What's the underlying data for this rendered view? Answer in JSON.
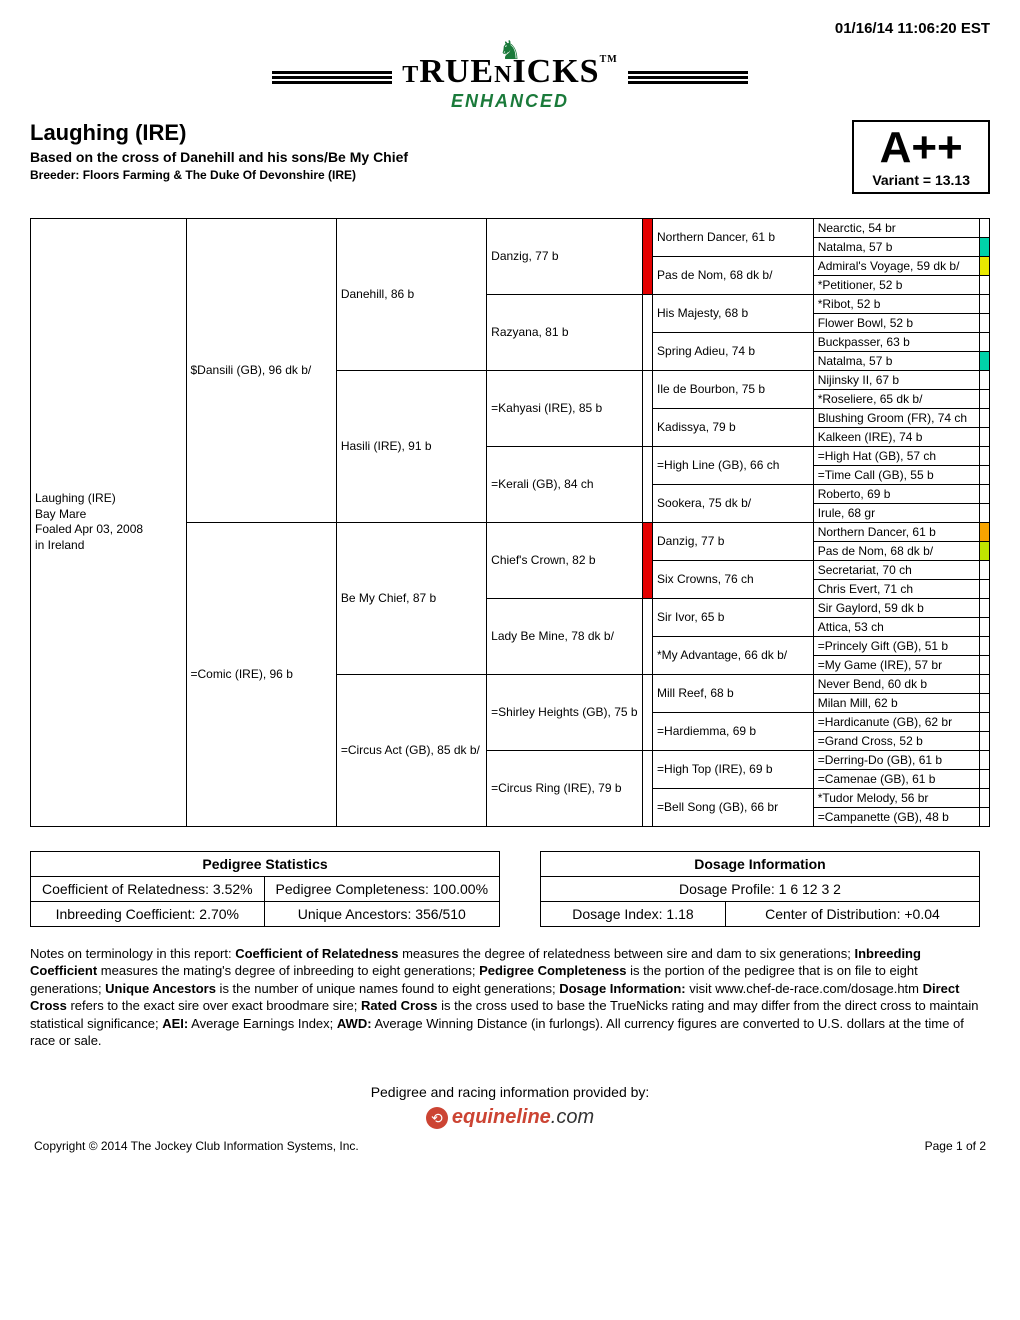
{
  "timestamp": "01/16/14 11:06:20 EST",
  "logo": {
    "main": "TRUENICKS",
    "tm": "TM",
    "sub": "ENHANCED"
  },
  "header": {
    "horse_name": "Laughing (IRE)",
    "cross_line": "Based on the cross of Danehill and his sons/Be My Chief",
    "breeder_line": "Breeder: Floors Farming & The Duke Of Devonshire (IRE)",
    "rating_grade": "A++",
    "rating_variant": "Variant = 13.13"
  },
  "subject": {
    "line1": "Laughing (IRE)",
    "line2": "Bay Mare",
    "line3": "Foaled Apr 03, 2008",
    "line4": "in Ireland"
  },
  "colors": {
    "red": "#e40000",
    "orange": "#f7a400",
    "teal": "#00d2a8",
    "yellow": "#e9e900",
    "lime": "#bfe400"
  },
  "ped": {
    "g1": [
      "$Dansili (GB), 96 dk b/",
      "=Comic (IRE), 96 b"
    ],
    "g2": [
      "Danehill, 86 b",
      "Hasili (IRE), 91 b",
      "Be My Chief, 87 b",
      "=Circus Act (GB), 85 dk b/"
    ],
    "g3": [
      "Danzig, 77 b",
      "Razyana, 81 b",
      "=Kahyasi (IRE), 85 b",
      "=Kerali (GB), 84 ch",
      "Chief's Crown, 82 b",
      "Lady Be Mine, 78 dk b/",
      "=Shirley Heights (GB), 75 b",
      "=Circus Ring (IRE), 79 b"
    ],
    "g4": [
      "Northern Dancer, 61 b",
      "Pas de Nom, 68 dk b/",
      "His Majesty, 68 b",
      "Spring Adieu, 74 b",
      "Ile de Bourbon, 75 b",
      "Kadissya, 79 b",
      "=High Line (GB), 66 ch",
      "Sookera, 75 dk b/",
      "Danzig, 77 b",
      "Six Crowns, 76 ch",
      "Sir Ivor, 65 b",
      "*My Advantage, 66 dk b/",
      "Mill Reef, 68 b",
      "=Hardiemma, 69 b",
      "=High Top (IRE), 69 b",
      "=Bell Song (GB), 66 br"
    ],
    "g5": [
      "Nearctic, 54 br",
      "Natalma, 57 b",
      "Admiral's Voyage, 59 dk b/",
      "*Petitioner, 52 b",
      "*Ribot, 52 b",
      "Flower Bowl, 52 b",
      "Buckpasser, 63 b",
      "Natalma, 57 b",
      "Nijinsky II, 67 b",
      "*Roseliere, 65 dk b/",
      "Blushing Groom (FR), 74 ch",
      "Kalkeen (IRE), 74 b",
      "=High Hat (GB), 57 ch",
      "=Time Call (GB), 55 b",
      "Roberto, 69 b",
      "Irule, 68 gr",
      "Northern Dancer, 61 b",
      "Pas de Nom, 68 dk b/",
      "Secretariat, 70 ch",
      "Chris Evert, 71 ch",
      "Sir Gaylord, 59 dk b",
      "Attica, 53 ch",
      "=Princely Gift (GB), 51 b",
      "=My Game (IRE), 57 br",
      "Never Bend, 60 dk b",
      "Milan Mill, 62 b",
      "=Hardicanute (GB), 62 br",
      "=Grand Cross, 52 b",
      "=Derring-Do (GB), 61 b",
      "=Camenae (GB), 61 b",
      "*Tudor Melody, 56 br",
      "=Campanette (GB), 48 b"
    ],
    "g5_colors": [
      "",
      "#00d2a8",
      "#e9e900",
      "",
      "",
      "",
      "",
      "#00d2a8",
      "",
      "",
      "",
      "",
      "",
      "",
      "",
      "",
      "#f7a400",
      "#bfe400",
      "",
      "",
      "",
      "",
      "",
      "",
      "",
      "",
      "",
      "",
      "",
      "",
      "",
      ""
    ],
    "g3_colors": [
      "#e40000",
      "",
      "",
      "",
      "#e40000",
      "",
      "",
      ""
    ]
  },
  "stats": {
    "left_header": "Pedigree Statistics",
    "coef_related_label": "Coefficient of Relatedness: 3.52%",
    "ped_complete_label": "Pedigree Completeness: 100.00%",
    "inbreed_label": "Inbreeding Coefficient: 2.70%",
    "unique_label": "Unique Ancestors: 356/510",
    "right_header": "Dosage Information",
    "dosage_profile": "Dosage Profile: 1 6 12 3 2",
    "dosage_index": "Dosage Index: 1.18",
    "center_dist": "Center of Distribution: +0.04"
  },
  "notes": {
    "prefix": "Notes on terminology in this report: ",
    "t1": "Coefficient of Relatedness",
    "d1": " measures the degree of relatedness between sire and dam to six generations; ",
    "t2": "Inbreeding Coefficient",
    "d2": " measures the mating's degree of inbreeding to eight generations; ",
    "t3": "Pedigree Completeness",
    "d3": " is the portion of the pedigree that is on file to eight generations; ",
    "t4": "Unique Ancestors",
    "d4": " is the number of unique names found to eight generations; ",
    "t5": "Dosage Information:",
    "d5": " visit www.chef-de-race.com/dosage.htm ",
    "t6": "Direct Cross",
    "d6": " refers to the exact sire over exact broodmare sire; ",
    "t7": "Rated Cross",
    "d7": " is the cross used to base the TrueNicks rating and may differ from the direct cross to maintain statistical significance; ",
    "t8": "AEI:",
    "d8": " Average Earnings Index; ",
    "t9": "AWD:",
    "d9": " Average Winning Distance (in furlongs). All currency figures are converted to U.S. dollars at the time of race or sale."
  },
  "footer": {
    "provided_by": "Pedigree and racing information provided by:",
    "brand1": "equineline",
    "brand2": ".com",
    "copyright": "Copyright © 2014 The Jockey Club Information Systems, Inc.",
    "page": "Page 1 of 2"
  }
}
